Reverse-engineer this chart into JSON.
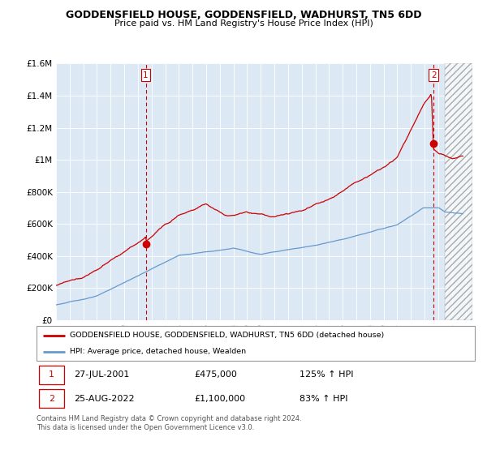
{
  "title": "GODDENSFIELD HOUSE, GODDENSFIELD, WADHURST, TN5 6DD",
  "subtitle": "Price paid vs. HM Land Registry's House Price Index (HPI)",
  "legend_line1": "GODDENSFIELD HOUSE, GODDENSFIELD, WADHURST, TN5 6DD (detached house)",
  "legend_line2": "HPI: Average price, detached house, Wealden",
  "sale1_date": "27-JUL-2001",
  "sale1_price": "£475,000",
  "sale1_hpi": "125% ↑ HPI",
  "sale2_date": "25-AUG-2022",
  "sale2_price": "£1,100,000",
  "sale2_hpi": "83% ↑ HPI",
  "footer": "Contains HM Land Registry data © Crown copyright and database right 2024.\nThis data is licensed under the Open Government Licence v3.0.",
  "house_color": "#cc0000",
  "hpi_color": "#6699cc",
  "dashed_color": "#cc0000",
  "bg_color": "#ffffff",
  "plot_bg_color": "#dce9f5",
  "grid_color": "#ffffff",
  "ylim": [
    0,
    1600000
  ],
  "yticks": [
    0,
    200000,
    400000,
    600000,
    800000,
    1000000,
    1200000,
    1400000,
    1600000
  ],
  "ytick_labels": [
    "£0",
    "£200K",
    "£400K",
    "£600K",
    "£800K",
    "£1M",
    "£1.2M",
    "£1.4M",
    "£1.6M"
  ],
  "xmin": 1995.0,
  "xmax": 2025.5,
  "sale1_x": 2001.57,
  "sale1_y": 475000,
  "sale2_x": 2022.65,
  "sale2_y": 1100000,
  "data_end_x": 2023.5
}
